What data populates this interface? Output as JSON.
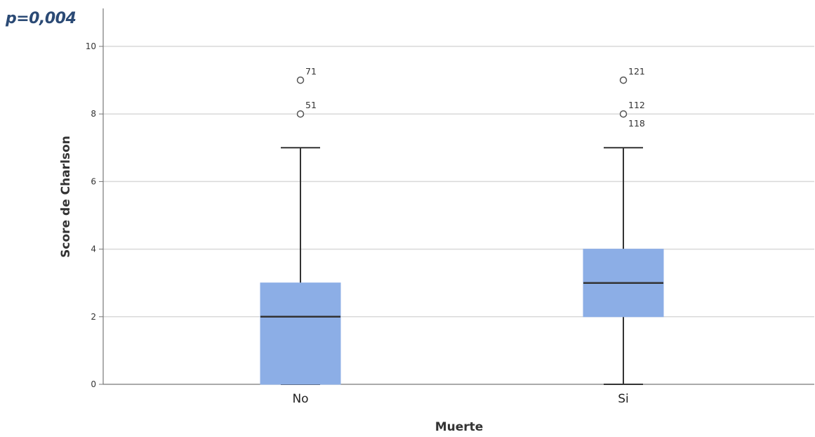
{
  "annotation": "p=0,004",
  "chart_data": {
    "type": "boxplot",
    "xlabel": "Muerte",
    "ylabel": "Score de Charlson",
    "ylim": [
      0,
      11
    ],
    "yticks": [
      0,
      2,
      4,
      6,
      8,
      10
    ],
    "grid": "horizontal",
    "colors": {
      "box": "#8caee6",
      "median": "#333333",
      "whisker": "#333333",
      "grid": "#d9d9d9",
      "axis": "#777777"
    },
    "categories": [
      "No",
      "Si"
    ],
    "boxes": [
      {
        "category": "No",
        "whisker_low": 0,
        "q1": 0,
        "median": 2,
        "q3": 3,
        "whisker_high": 7,
        "outliers": [
          {
            "value": 9,
            "labels": [
              "71"
            ]
          },
          {
            "value": 8,
            "labels": [
              "51"
            ]
          }
        ]
      },
      {
        "category": "Si",
        "whisker_low": 0,
        "q1": 2,
        "median": 3,
        "q3": 4,
        "whisker_high": 7,
        "outliers": [
          {
            "value": 9,
            "labels": [
              "121"
            ]
          },
          {
            "value": 8,
            "labels": [
              "112",
              "118"
            ]
          }
        ]
      }
    ]
  }
}
